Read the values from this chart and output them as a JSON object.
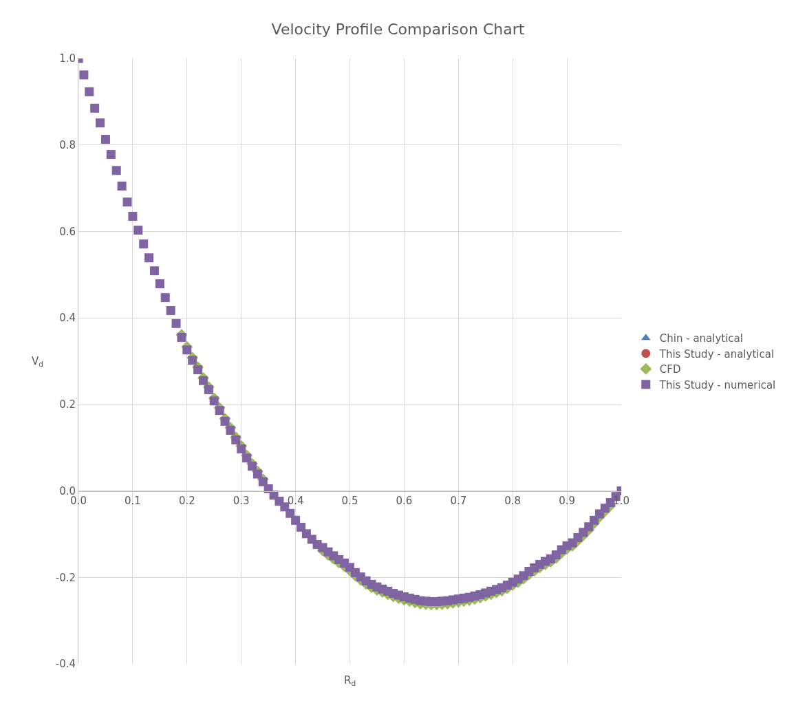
{
  "chart_data": {
    "type": "scatter",
    "title": "Velocity Profile Comparison Chart",
    "xlabel": "R$_{d}$",
    "ylabel": "V$_{d}$",
    "x": [
      0,
      0.01,
      0.02,
      0.03,
      0.04,
      0.05,
      0.06,
      0.07,
      0.08,
      0.09,
      0.1,
      0.11,
      0.12,
      0.13,
      0.14,
      0.15,
      0.16,
      0.17,
      0.18,
      0.19,
      0.2,
      0.21,
      0.22,
      0.23,
      0.24,
      0.25,
      0.26,
      0.27,
      0.28,
      0.29,
      0.3,
      0.31,
      0.32,
      0.33,
      0.34,
      0.35,
      0.36,
      0.37,
      0.38,
      0.39,
      0.4,
      0.41,
      0.42,
      0.43,
      0.44,
      0.45,
      0.46,
      0.47,
      0.48,
      0.49,
      0.5,
      0.51,
      0.52,
      0.53,
      0.54,
      0.55,
      0.56,
      0.57,
      0.58,
      0.59,
      0.6,
      0.61,
      0.62,
      0.63,
      0.64,
      0.65,
      0.66,
      0.67,
      0.68,
      0.69,
      0.7,
      0.71,
      0.72,
      0.73,
      0.74,
      0.75,
      0.76,
      0.77,
      0.78,
      0.79,
      0.8,
      0.81,
      0.82,
      0.83,
      0.84,
      0.85,
      0.86,
      0.87,
      0.88,
      0.89,
      0.9,
      0.91,
      0.92,
      0.93,
      0.94,
      0.95,
      0.96,
      0.97,
      0.98,
      0.99,
      1.0
    ],
    "series": [
      {
        "name": "Chin - analytical",
        "color": "#4f81bd",
        "marker": "triangle",
        "values": [
          null,
          null,
          null,
          null,
          null,
          null,
          null,
          null,
          null,
          null,
          null,
          null,
          null,
          null,
          null,
          null,
          null,
          null,
          null,
          null,
          null,
          null,
          null,
          null,
          null,
          null,
          null,
          null,
          null,
          null,
          null,
          null,
          null,
          null,
          null,
          null,
          null,
          null,
          null,
          null,
          null,
          null,
          null,
          null,
          null,
          null,
          null,
          null,
          null,
          null,
          null,
          null,
          null,
          null,
          null,
          null,
          null,
          null,
          null,
          null,
          null,
          null,
          null,
          null,
          null,
          null,
          null,
          null,
          null,
          null,
          null,
          null,
          null,
          null,
          null,
          null,
          null,
          null,
          null,
          null,
          null,
          null,
          null,
          null,
          null,
          null,
          null,
          null,
          null,
          null,
          null,
          null,
          null,
          null,
          null,
          null,
          null,
          null,
          null,
          null,
          null
        ]
      },
      {
        "name": "This Study - analytical",
        "color": "#c0504d",
        "marker": "circle",
        "values": [
          null,
          null,
          null,
          null,
          null,
          null,
          null,
          null,
          null,
          null,
          null,
          null,
          null,
          null,
          null,
          null,
          null,
          null,
          null,
          null,
          null,
          null,
          null,
          null,
          null,
          null,
          null,
          null,
          null,
          null,
          null,
          null,
          null,
          null,
          null,
          null,
          null,
          null,
          null,
          null,
          null,
          null,
          null,
          null,
          null,
          null,
          null,
          null,
          null,
          null,
          null,
          null,
          null,
          null,
          null,
          null,
          null,
          null,
          null,
          null,
          null,
          null,
          null,
          null,
          null,
          null,
          null,
          null,
          null,
          null,
          null,
          null,
          null,
          null,
          null,
          null,
          null,
          null,
          null,
          null,
          null,
          null,
          null,
          null,
          null,
          null,
          null,
          null,
          null,
          null,
          null,
          null,
          null,
          null,
          null,
          null,
          null,
          null,
          null,
          null,
          null
        ]
      },
      {
        "name": "CFD",
        "color": "#9bbb59",
        "marker": "diamond",
        "values": [
          null,
          null,
          null,
          null,
          null,
          null,
          null,
          null,
          null,
          null,
          null,
          null,
          null,
          null,
          null,
          null,
          null,
          null,
          null,
          0.361,
          0.333,
          0.308,
          0.286,
          0.261,
          0.24,
          0.214,
          0.192,
          0.167,
          0.146,
          0.124,
          0.104,
          0.082,
          0.063,
          0.045,
          0.027,
          null,
          null,
          null,
          null,
          null,
          null,
          null,
          null,
          null,
          null,
          -0.138,
          -0.148,
          -0.157,
          -0.166,
          -0.174,
          -0.184,
          -0.196,
          -0.206,
          -0.215,
          -0.223,
          -0.229,
          -0.234,
          -0.239,
          -0.244,
          -0.248,
          -0.252,
          -0.255,
          -0.258,
          -0.261,
          -0.262,
          -0.263,
          -0.263,
          -0.262,
          -0.261,
          -0.259,
          -0.257,
          -0.255,
          -0.253,
          -0.25,
          -0.247,
          -0.243,
          -0.239,
          -0.235,
          -0.231,
          -0.225,
          -0.218,
          -0.211,
          -0.203,
          -0.193,
          -0.185,
          -0.177,
          -0.17,
          -0.164,
          -0.155,
          -0.143,
          -0.134,
          -0.127,
          -0.115,
          -0.103,
          -0.09,
          -0.075,
          -0.06,
          -0.047,
          -0.034,
          null,
          null
        ]
      },
      {
        "name": "This Study - numerical",
        "color": "#8064a2",
        "marker": "square",
        "values": [
          1.0,
          0.962,
          0.923,
          0.885,
          0.851,
          0.813,
          0.778,
          0.741,
          0.705,
          0.668,
          0.635,
          0.603,
          0.571,
          0.539,
          0.509,
          0.479,
          0.447,
          0.417,
          0.387,
          0.355,
          0.326,
          0.302,
          0.28,
          0.255,
          0.234,
          0.208,
          0.186,
          0.161,
          0.14,
          0.118,
          0.097,
          0.076,
          0.057,
          0.039,
          0.021,
          0.005,
          -0.01,
          -0.024,
          -0.037,
          -0.052,
          -0.068,
          -0.084,
          -0.099,
          -0.112,
          -0.124,
          -0.131,
          -0.141,
          -0.15,
          -0.159,
          -0.167,
          -0.177,
          -0.189,
          -0.199,
          -0.208,
          -0.216,
          -0.222,
          -0.227,
          -0.232,
          -0.237,
          -0.241,
          -0.245,
          -0.248,
          -0.251,
          -0.254,
          -0.255,
          -0.256,
          -0.256,
          -0.255,
          -0.254,
          -0.252,
          -0.25,
          -0.248,
          -0.246,
          -0.243,
          -0.24,
          -0.236,
          -0.232,
          -0.228,
          -0.224,
          -0.218,
          -0.211,
          -0.204,
          -0.196,
          -0.186,
          -0.178,
          -0.17,
          -0.163,
          -0.157,
          -0.148,
          -0.136,
          -0.127,
          -0.12,
          -0.108,
          -0.096,
          -0.083,
          -0.068,
          -0.053,
          -0.04,
          -0.027,
          -0.013,
          0
        ]
      }
    ],
    "xlim": [
      0,
      1.0
    ],
    "xticks": [
      {
        "value": 0,
        "label": "0.0"
      },
      0.1,
      0.2,
      0.3,
      0.4,
      0.5,
      0.6,
      0.7,
      0.8,
      0.9,
      {
        "value": 1.0,
        "label": "1.0"
      }
    ],
    "ylim": [
      -0.4,
      1.0
    ],
    "yticks": [
      -0.4,
      -0.2,
      {
        "value": 0,
        "label": "0.0"
      },
      0.2,
      0.4,
      0.6,
      0.8,
      {
        "value": 1.0,
        "label": "1.0"
      }
    ],
    "grid": true,
    "legend": "right"
  }
}
